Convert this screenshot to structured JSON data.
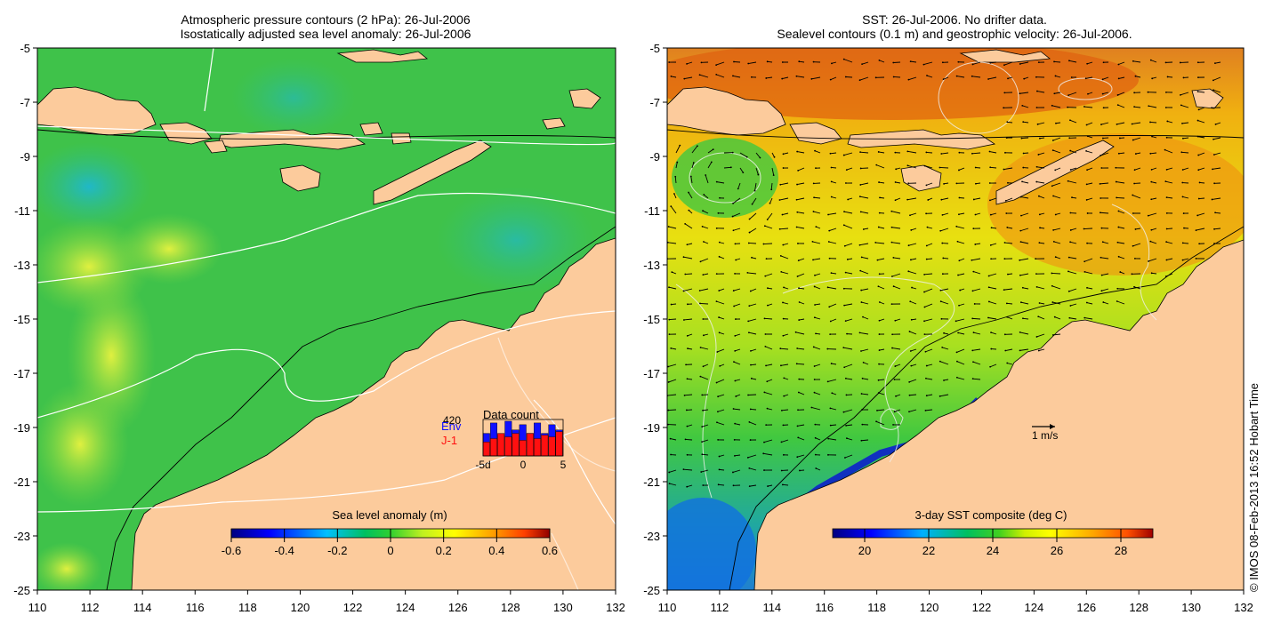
{
  "figure": {
    "credit": "© IMOS 08-Feb-2013 16:52 Hobart Time"
  },
  "colors": {
    "ocean_left": "#3fc24a",
    "land": "#fccb9c",
    "contour": "#ffffff",
    "coast": "#000000"
  },
  "chart_data": [
    {
      "type": "heatmap",
      "title": "Atmospheric pressure contours (2 hPa): 26-Jul-2006",
      "subtitle": "Isostatically adjusted sea level anomaly: 26-Jul-2006",
      "xlim": [
        110,
        132
      ],
      "ylim": [
        -25,
        -5
      ],
      "x_ticks": [
        "110",
        "112",
        "114",
        "116",
        "118",
        "120",
        "122",
        "124",
        "126",
        "128",
        "130",
        "132"
      ],
      "y_ticks": [
        "-5",
        "-7",
        "-9",
        "-11",
        "-13",
        "-15",
        "-17",
        "-19",
        "-21",
        "-23",
        "-25"
      ],
      "colorbar": {
        "label": "Sea level anomaly (m)",
        "range": [
          -0.6,
          0.6
        ],
        "ticks": [
          "-0.6",
          "-0.4",
          "-0.2",
          "0",
          "0.2",
          "0.4",
          "0.6"
        ]
      },
      "inset": {
        "title": "Data count",
        "max_label": "420",
        "series": [
          {
            "name": "Env",
            "color": "#1010ff",
            "values": [
              260,
              380,
              240,
              400,
              300,
              360,
              260,
              380,
              260,
              360,
              300
            ]
          },
          {
            "name": "J-1",
            "color": "#ff1010",
            "values": [
              160,
              200,
              260,
              220,
              260,
              180,
              260,
              200,
              240,
              220,
              280
            ]
          }
        ],
        "x_ticks": [
          "-5d",
          "0",
          "5"
        ]
      }
    },
    {
      "type": "heatmap",
      "title": "SST: 26-Jul-2006. No drifter data.",
      "subtitle": "Sealevel contours (0.1 m) and geostrophic velocity: 26-Jul-2006.",
      "xlim": [
        110,
        132
      ],
      "ylim": [
        -25,
        -5
      ],
      "x_ticks": [
        "110",
        "112",
        "114",
        "116",
        "118",
        "120",
        "122",
        "124",
        "126",
        "128",
        "130",
        "132"
      ],
      "y_ticks": [
        "-5",
        "-7",
        "-9",
        "-11",
        "-13",
        "-15",
        "-17",
        "-19",
        "-21",
        "-23",
        "-25"
      ],
      "colorbar": {
        "label": "3-day SST composite (deg C)",
        "range": [
          19,
          29
        ],
        "ticks": [
          "20",
          "22",
          "24",
          "26",
          "28"
        ]
      },
      "scale_arrow_label": "1 m/s"
    }
  ]
}
